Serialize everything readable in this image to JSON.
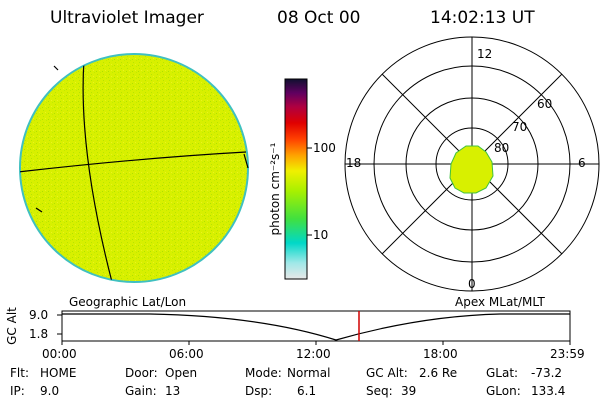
{
  "header": {
    "instrument": "Ultraviolet Imager",
    "date": "08 Oct 00",
    "time": "14:02:13 UT"
  },
  "colorbar": {
    "unit_label": "photon cm⁻²s⁻¹",
    "ticks": [
      "100",
      "10"
    ]
  },
  "polar": {
    "lat_labels": [
      "80",
      "70",
      "60"
    ],
    "mlt_labels": [
      "12",
      "18",
      "6",
      "0"
    ]
  },
  "panels": {
    "left_caption": "Geographic Lat/Lon",
    "right_caption": "Apex MLat/MLT"
  },
  "altitude_plot": {
    "axis_label": "GC Alt",
    "y_ticks": [
      "9.0",
      "1.8"
    ],
    "x_ticks": [
      "00:00",
      "06:00",
      "12:00",
      "18:00",
      "23:59"
    ],
    "marker_time": "14:02"
  },
  "info": {
    "flt_label": "Flt:",
    "flt_value": "HOME",
    "ip_label": "IP:",
    "ip_value": "9.0",
    "door_label": "Door:",
    "door_value": "Open",
    "gain_label": "Gain:",
    "gain_value": "13",
    "mode_label": "Mode:",
    "mode_value": "Normal",
    "dsp_label": "Dsp:",
    "dsp_value": "6.1",
    "gcalt_label": "GC Alt:",
    "gcalt_value": "2.6 Re",
    "seq_label": "Seq:",
    "seq_value": "39",
    "glat_label": "GLat:",
    "glat_value": "-73.2",
    "glon_label": "GLon:",
    "glon_value": "133.4"
  },
  "colors": {
    "earth_fill": "#d8f000",
    "earth_edge": "#40c0c0",
    "marker": "#d00000"
  }
}
